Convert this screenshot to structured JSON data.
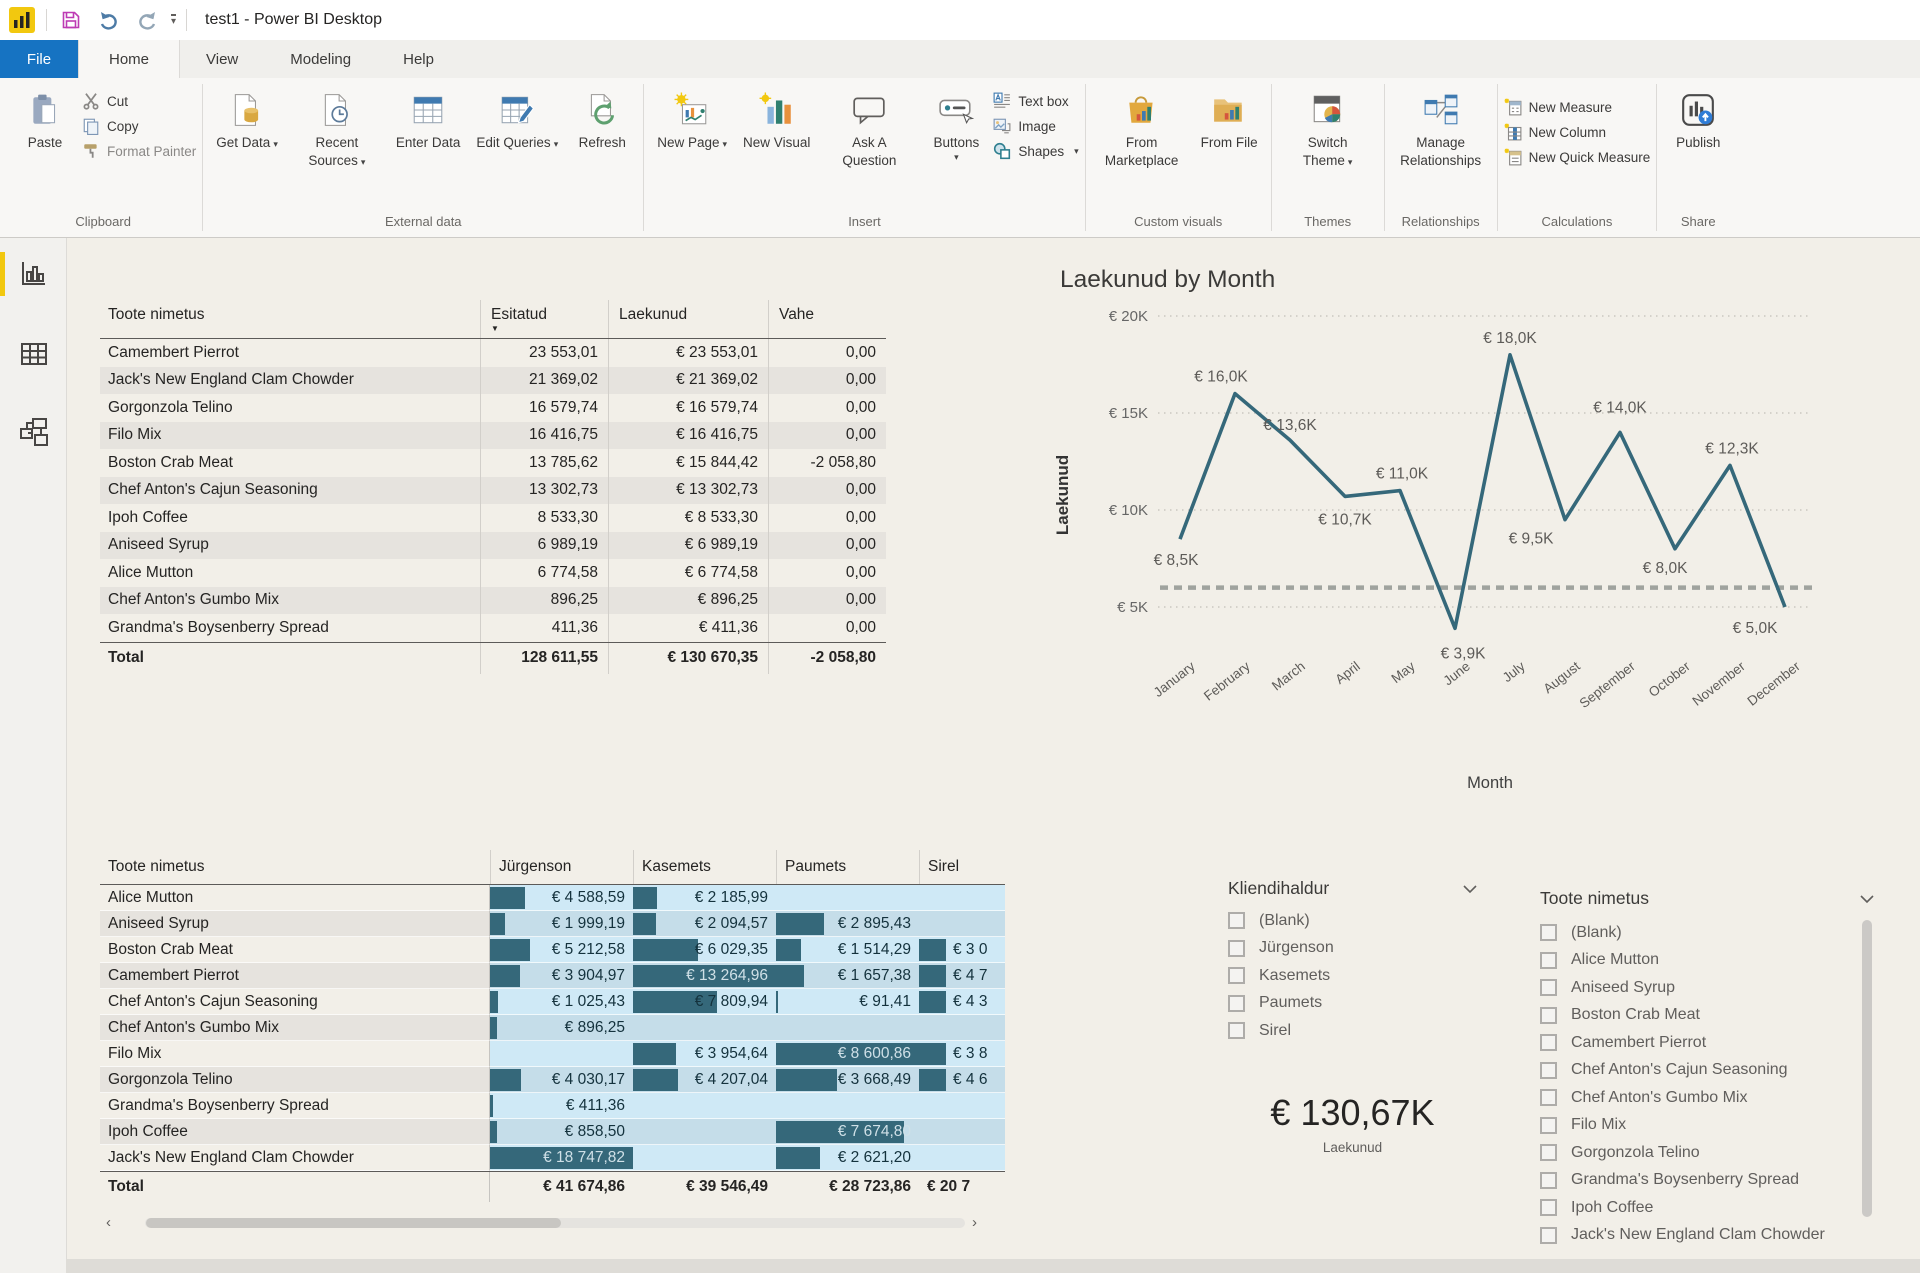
{
  "titlebar": {
    "title": "test1 - Power BI Desktop"
  },
  "menu": {
    "file": "File",
    "home": "Home",
    "view": "View",
    "modeling": "Modeling",
    "help": "Help"
  },
  "ribbon": {
    "paste": "Paste",
    "cut": "Cut",
    "copy": "Copy",
    "format_painter": "Format Painter",
    "get_data": "Get Data",
    "recent_sources": "Recent Sources",
    "enter_data": "Enter Data",
    "edit_queries": "Edit Queries",
    "refresh": "Refresh",
    "new_page": "New Page",
    "new_visual": "New Visual",
    "ask_a_question": "Ask A Question",
    "buttons": "Buttons",
    "text_box": "Text box",
    "image": "Image",
    "shapes": "Shapes",
    "from_marketplace": "From Marketplace",
    "from_file": "From File",
    "switch_theme": "Switch Theme",
    "manage_relationships": "Manage Relationships",
    "new_measure": "New Measure",
    "new_column": "New Column",
    "new_quick_measure": "New Quick Measure",
    "publish": "Publish",
    "groups": {
      "clipboard": "Clipboard",
      "external": "External data",
      "insert": "Insert",
      "custom": "Custom visuals",
      "themes": "Themes",
      "relationships": "Relationships",
      "calculations": "Calculations",
      "share": "Share"
    }
  },
  "table": {
    "columns": [
      "Toote nimetus",
      "Esitatud",
      "Laekunud",
      "Vahe"
    ],
    "rows": [
      {
        "name": "Camembert Pierrot",
        "esitatud": "23 553,01",
        "laekunud": "€ 23 553,01",
        "vahe": "0,00"
      },
      {
        "name": "Jack's New England Clam Chowder",
        "esitatud": "21 369,02",
        "laekunud": "€ 21 369,02",
        "vahe": "0,00"
      },
      {
        "name": "Gorgonzola Telino",
        "esitatud": "16 579,74",
        "laekunud": "€ 16 579,74",
        "vahe": "0,00"
      },
      {
        "name": "Filo Mix",
        "esitatud": "16 416,75",
        "laekunud": "€ 16 416,75",
        "vahe": "0,00"
      },
      {
        "name": "Boston Crab Meat",
        "esitatud": "13 785,62",
        "laekunud": "€ 15 844,42",
        "vahe": "-2 058,80"
      },
      {
        "name": "Chef Anton's Cajun Seasoning",
        "esitatud": "13 302,73",
        "laekunud": "€ 13 302,73",
        "vahe": "0,00"
      },
      {
        "name": "Ipoh Coffee",
        "esitatud": "8 533,30",
        "laekunud": "€ 8 533,30",
        "vahe": "0,00"
      },
      {
        "name": "Aniseed Syrup",
        "esitatud": "6 989,19",
        "laekunud": "€ 6 989,19",
        "vahe": "0,00"
      },
      {
        "name": "Alice Mutton",
        "esitatud": "6 774,58",
        "laekunud": "€ 6 774,58",
        "vahe": "0,00"
      },
      {
        "name": "Chef Anton's Gumbo Mix",
        "esitatud": "896,25",
        "laekunud": "€ 896,25",
        "vahe": "0,00"
      },
      {
        "name": "Grandma's Boysenberry Spread",
        "esitatud": "411,36",
        "laekunud": "€ 411,36",
        "vahe": "0,00"
      }
    ],
    "total": {
      "name": "Total",
      "esitatud": "128 611,55",
      "laekunud": "€ 130 670,35",
      "vahe": "-2 058,80"
    }
  },
  "matrix": {
    "columns": [
      "Toote nimetus",
      "Jürgenson",
      "Kasemets",
      "Paumets",
      "Sirel"
    ],
    "rows": [
      {
        "name": "Alice Mutton",
        "c1": {
          "t": "€ 4 588,59",
          "b": 0.245
        },
        "c2": {
          "t": "€ 2 185,99",
          "b": 0.165
        },
        "c3": {
          "t": "",
          "b": 0
        },
        "c4": {
          "t": "",
          "b": 0
        }
      },
      {
        "name": "Aniseed Syrup",
        "c1": {
          "t": "€ 1 999,19",
          "b": 0.107
        },
        "c2": {
          "t": "€ 2 094,57",
          "b": 0.158
        },
        "c3": {
          "t": "€ 2 895,43",
          "b": 0.337
        },
        "c4": {
          "t": "",
          "b": 0
        }
      },
      {
        "name": "Boston Crab Meat",
        "c1": {
          "t": "€ 5 212,58",
          "b": 0.278
        },
        "c2": {
          "t": "€ 6 029,35",
          "b": 0.455
        },
        "c3": {
          "t": "€ 1 514,29",
          "b": 0.176
        },
        "c4": {
          "t": "€ 3 0",
          "b": 0.19
        }
      },
      {
        "name": "Camembert Pierrot",
        "c1": {
          "t": "€ 3 904,97",
          "b": 0.208
        },
        "c2": {
          "t": "€ 13 264,96",
          "b": 1,
          "l": 1
        },
        "c3": {
          "t": "€ 1 657,38",
          "b": 0.193
        },
        "c4": {
          "t": "€ 4 7",
          "b": 0.19
        }
      },
      {
        "name": "Chef Anton's Cajun Seasoning",
        "c1": {
          "t": "€ 1 025,43",
          "b": 0.055
        },
        "c2": {
          "t": "€ 7 809,94",
          "b": 0.589
        },
        "c3": {
          "t": "€ 91,41",
          "b": 0.011
        },
        "c4": {
          "t": "€ 4 3",
          "b": 0.19
        }
      },
      {
        "name": "Chef Anton's Gumbo Mix",
        "c1": {
          "t": "€ 896,25",
          "b": 0.048
        },
        "c2": {
          "t": "",
          "b": 0
        },
        "c3": {
          "t": "",
          "b": 0
        },
        "c4": {
          "t": "",
          "b": 0
        }
      },
      {
        "name": "Filo Mix",
        "c1": {
          "t": "",
          "b": 0
        },
        "c2": {
          "t": "€ 3 954,64",
          "b": 0.298
        },
        "c3": {
          "t": "€ 8 600,86",
          "b": 1,
          "l": 1
        },
        "c4": {
          "t": "€ 3 8",
          "b": 0.19
        }
      },
      {
        "name": "Gorgonzola Telino",
        "c1": {
          "t": "€ 4 030,17",
          "b": 0.215
        },
        "c2": {
          "t": "€ 4 207,04",
          "b": 0.317
        },
        "c3": {
          "t": "€ 3 668,49",
          "b": 0.427
        },
        "c4": {
          "t": "€ 4 6",
          "b": 0.19
        }
      },
      {
        "name": "Grandma's Boysenberry Spread",
        "c1": {
          "t": "€ 411,36",
          "b": 0.022
        },
        "c2": {
          "t": "",
          "b": 0
        },
        "c3": {
          "t": "",
          "b": 0
        },
        "c4": {
          "t": "",
          "b": 0
        }
      },
      {
        "name": "Ipoh Coffee",
        "c1": {
          "t": "€ 858,50",
          "b": 0.046
        },
        "c2": {
          "t": "",
          "b": 0
        },
        "c3": {
          "t": "€ 7 674,80",
          "b": 0.892,
          "l": 1
        },
        "c4": {
          "t": "",
          "b": 0
        }
      },
      {
        "name": "Jack's New England Clam Chowder",
        "c1": {
          "t": "€ 18 747,82",
          "b": 1,
          "l": 1
        },
        "c2": {
          "t": "",
          "b": 0
        },
        "c3": {
          "t": "€ 2 621,20",
          "b": 0.305
        },
        "c4": {
          "t": "",
          "b": 0
        }
      }
    ],
    "total": {
      "name": "Total",
      "c1": "€ 41 674,86",
      "c2": "€ 39 546,49",
      "c3": "€ 28 723,86",
      "c4": "€ 20 7"
    }
  },
  "slicers": {
    "kliendihaldur": {
      "title": "Kliendihaldur",
      "items": [
        "(Blank)",
        "Jürgenson",
        "Kasemets",
        "Paumets",
        "Sirel"
      ]
    },
    "toote": {
      "title": "Toote nimetus",
      "items": [
        "(Blank)",
        "Alice Mutton",
        "Aniseed Syrup",
        "Boston Crab Meat",
        "Camembert Pierrot",
        "Chef Anton's Cajun Seasoning",
        "Chef Anton's Gumbo Mix",
        "Filo Mix",
        "Gorgonzola Telino",
        "Grandma's Boysenberry Spread",
        "Ipoh Coffee",
        "Jack's New England Clam Chowder"
      ]
    }
  },
  "card": {
    "value": "€ 130,67K",
    "label": "Laekunud"
  },
  "chart_data": {
    "type": "line",
    "title": "Laekunud by Month",
    "xlabel": "Month",
    "ylabel": "Laekunud",
    "categories": [
      "January",
      "February",
      "March",
      "April",
      "May",
      "June",
      "July",
      "August",
      "September",
      "October",
      "November",
      "December"
    ],
    "values": [
      8500,
      16000,
      13600,
      10700,
      11000,
      3900,
      18000,
      9500,
      14000,
      8000,
      12300,
      5000
    ],
    "point_labels": [
      "€ 8,5K",
      "€ 16,0K",
      "€ 13,6K",
      "€ 10,7K",
      "€ 11,0K",
      "€ 3,9K",
      "€ 18,0K",
      "€ 9,5K",
      "€ 14,0K",
      "€ 8,0K",
      "€ 12,3K",
      "€ 5,0K"
    ],
    "yticks": [
      {
        "v": 20000,
        "label": "€ 20K"
      },
      {
        "v": 15000,
        "label": "€ 15K"
      },
      {
        "v": 10000,
        "label": "€ 10K"
      },
      {
        "v": 5000,
        "label": "€ 5K"
      }
    ],
    "ylim": [
      3000,
      21000
    ],
    "ref_line_value": 6000,
    "grid": true,
    "legend": "none",
    "line_color": "#35687a"
  }
}
